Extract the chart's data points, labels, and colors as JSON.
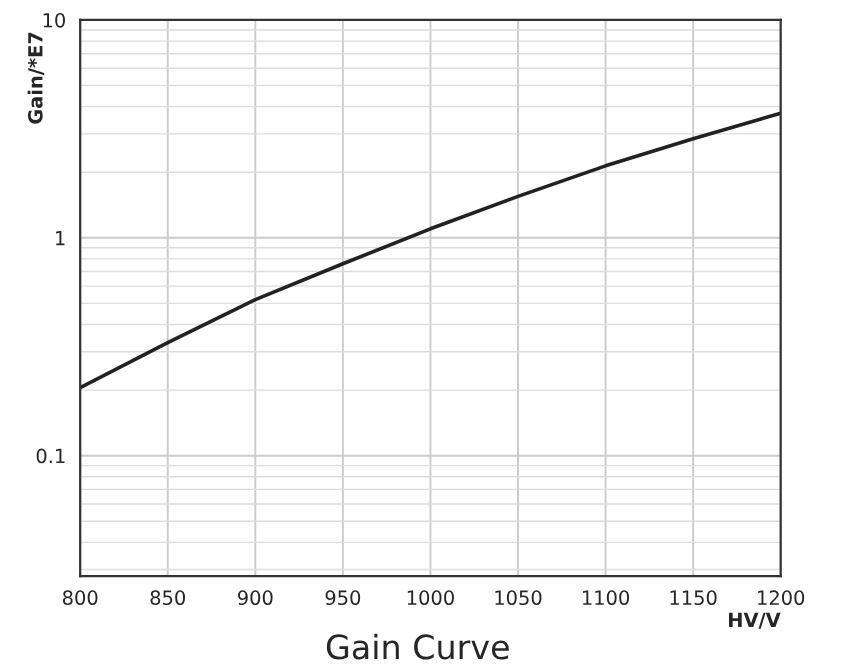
{
  "chart_data": {
    "type": "line",
    "title": "Gain Curve",
    "xlabel": "HV/V",
    "ylabel": "Gain/*E7",
    "x": [
      800,
      850,
      900,
      950,
      1000,
      1050,
      1100,
      1150,
      1200
    ],
    "series": [
      {
        "color": "#222222",
        "values": [
          0.205,
          0.33,
          0.52,
          0.76,
          1.1,
          1.55,
          2.14,
          2.85,
          3.73
        ]
      }
    ],
    "log": "y",
    "xlim": [
      800,
      1200
    ],
    "xticks": [
      800,
      850,
      900,
      950,
      1000,
      1050,
      1100,
      1150,
      1200
    ],
    "ylim": [
      0.028,
      10
    ],
    "yticks": [
      0.1,
      1,
      10
    ],
    "grid": true,
    "marker": "none",
    "line_style": "solid"
  }
}
